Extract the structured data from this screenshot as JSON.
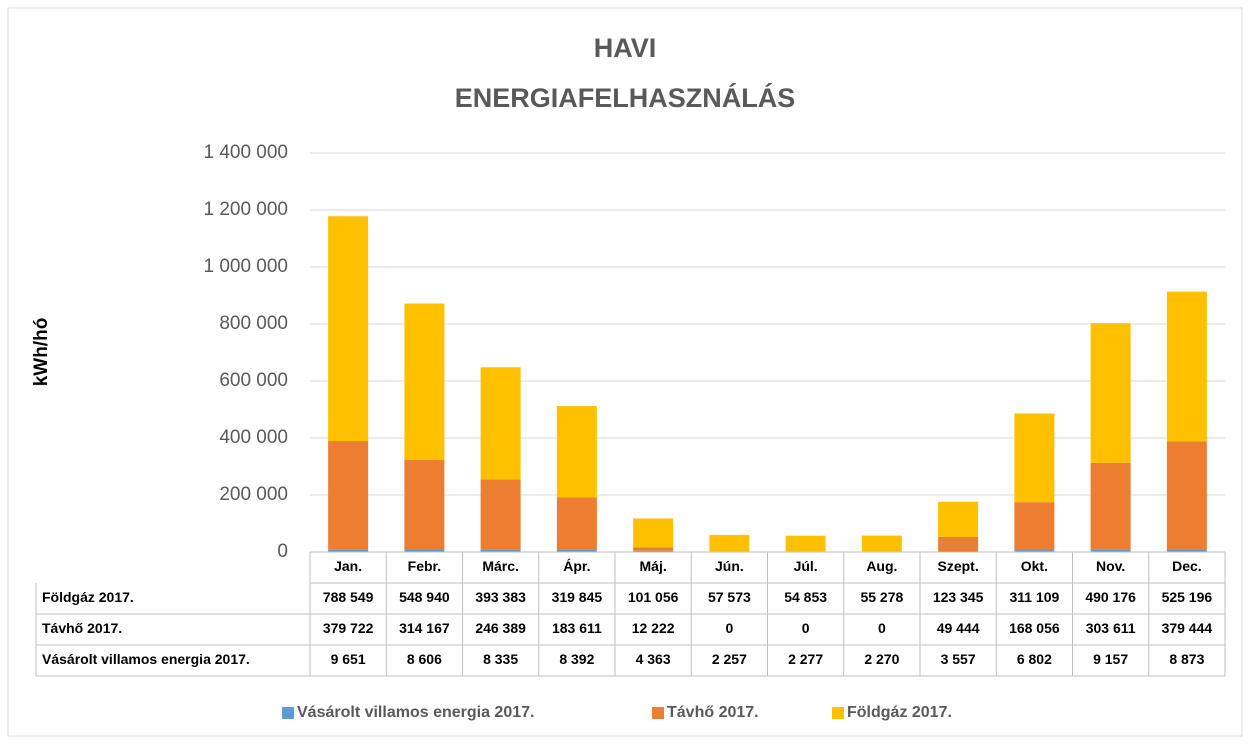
{
  "chart_data": {
    "type": "stacked_bar",
    "title": [
      "HAVI",
      "ENERGIAFELHASZNÁLÁS"
    ],
    "y_label": "kWh/hó",
    "categories": [
      "Jan.",
      "Febr.",
      "Márc.",
      "Ápr.",
      "Máj.",
      "Jún.",
      "Júl.",
      "Aug.",
      "Szept.",
      "Okt.",
      "Nov.",
      "Dec."
    ],
    "series": [
      {
        "name": "Vásárolt villamos energia 2017.",
        "color": "#5b9bd5",
        "values": [
          9651,
          8606,
          8335,
          8392,
          4363,
          2257,
          2277,
          2270,
          3557,
          6802,
          9157,
          8873
        ],
        "value_labels": [
          "9 651",
          "8 606",
          "8 335",
          "8 392",
          "4 363",
          "2 257",
          "2 277",
          "2 270",
          "3 557",
          "6 802",
          "9 157",
          "8 873"
        ]
      },
      {
        "name": "Távhő 2017.",
        "color": "#ed7d31",
        "values": [
          379722,
          314167,
          246389,
          183611,
          12222,
          0,
          0,
          0,
          49444,
          168056,
          303611,
          379444
        ],
        "value_labels": [
          "379 722",
          "314 167",
          "246 389",
          "183 611",
          "12 222",
          "0",
          "0",
          "0",
          "49 444",
          "168 056",
          "303 611",
          "379 444"
        ]
      },
      {
        "name": "Földgáz 2017.",
        "color": "#ffc000",
        "values": [
          788549,
          548940,
          393383,
          319845,
          101056,
          57573,
          54853,
          55278,
          123345,
          311109,
          490176,
          525196
        ],
        "value_labels": [
          "788 549",
          "548 940",
          "393 383",
          "319 845",
          "101 056",
          "57 573",
          "54 853",
          "55 278",
          "123 345",
          "311 109",
          "490 176",
          "525 196"
        ]
      }
    ],
    "ylim": [
      0,
      1400000
    ],
    "yticks": [
      0,
      {
        "value": 200000,
        "label": "200 000"
      },
      {
        "value": 400000,
        "label": "400 000"
      },
      {
        "value": 600000,
        "label": "600 000"
      },
      {
        "value": 800000,
        "label": "800 000"
      },
      {
        "value": 1000000,
        "label": "1 000 000"
      },
      {
        "value": 1200000,
        "label": "1 200 000"
      },
      {
        "value": 1400000,
        "label": "1 400 000"
      }
    ],
    "grid": true,
    "legend": "bottom"
  }
}
